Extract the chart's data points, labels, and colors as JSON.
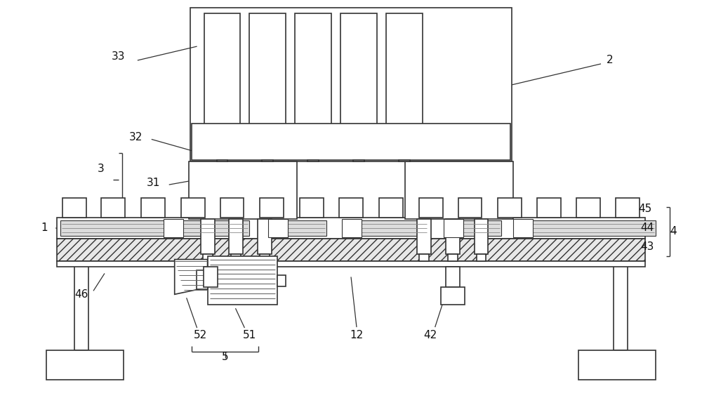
{
  "bg_color": "#ffffff",
  "line_color": "#333333",
  "fig_width": 10.0,
  "fig_height": 5.67
}
